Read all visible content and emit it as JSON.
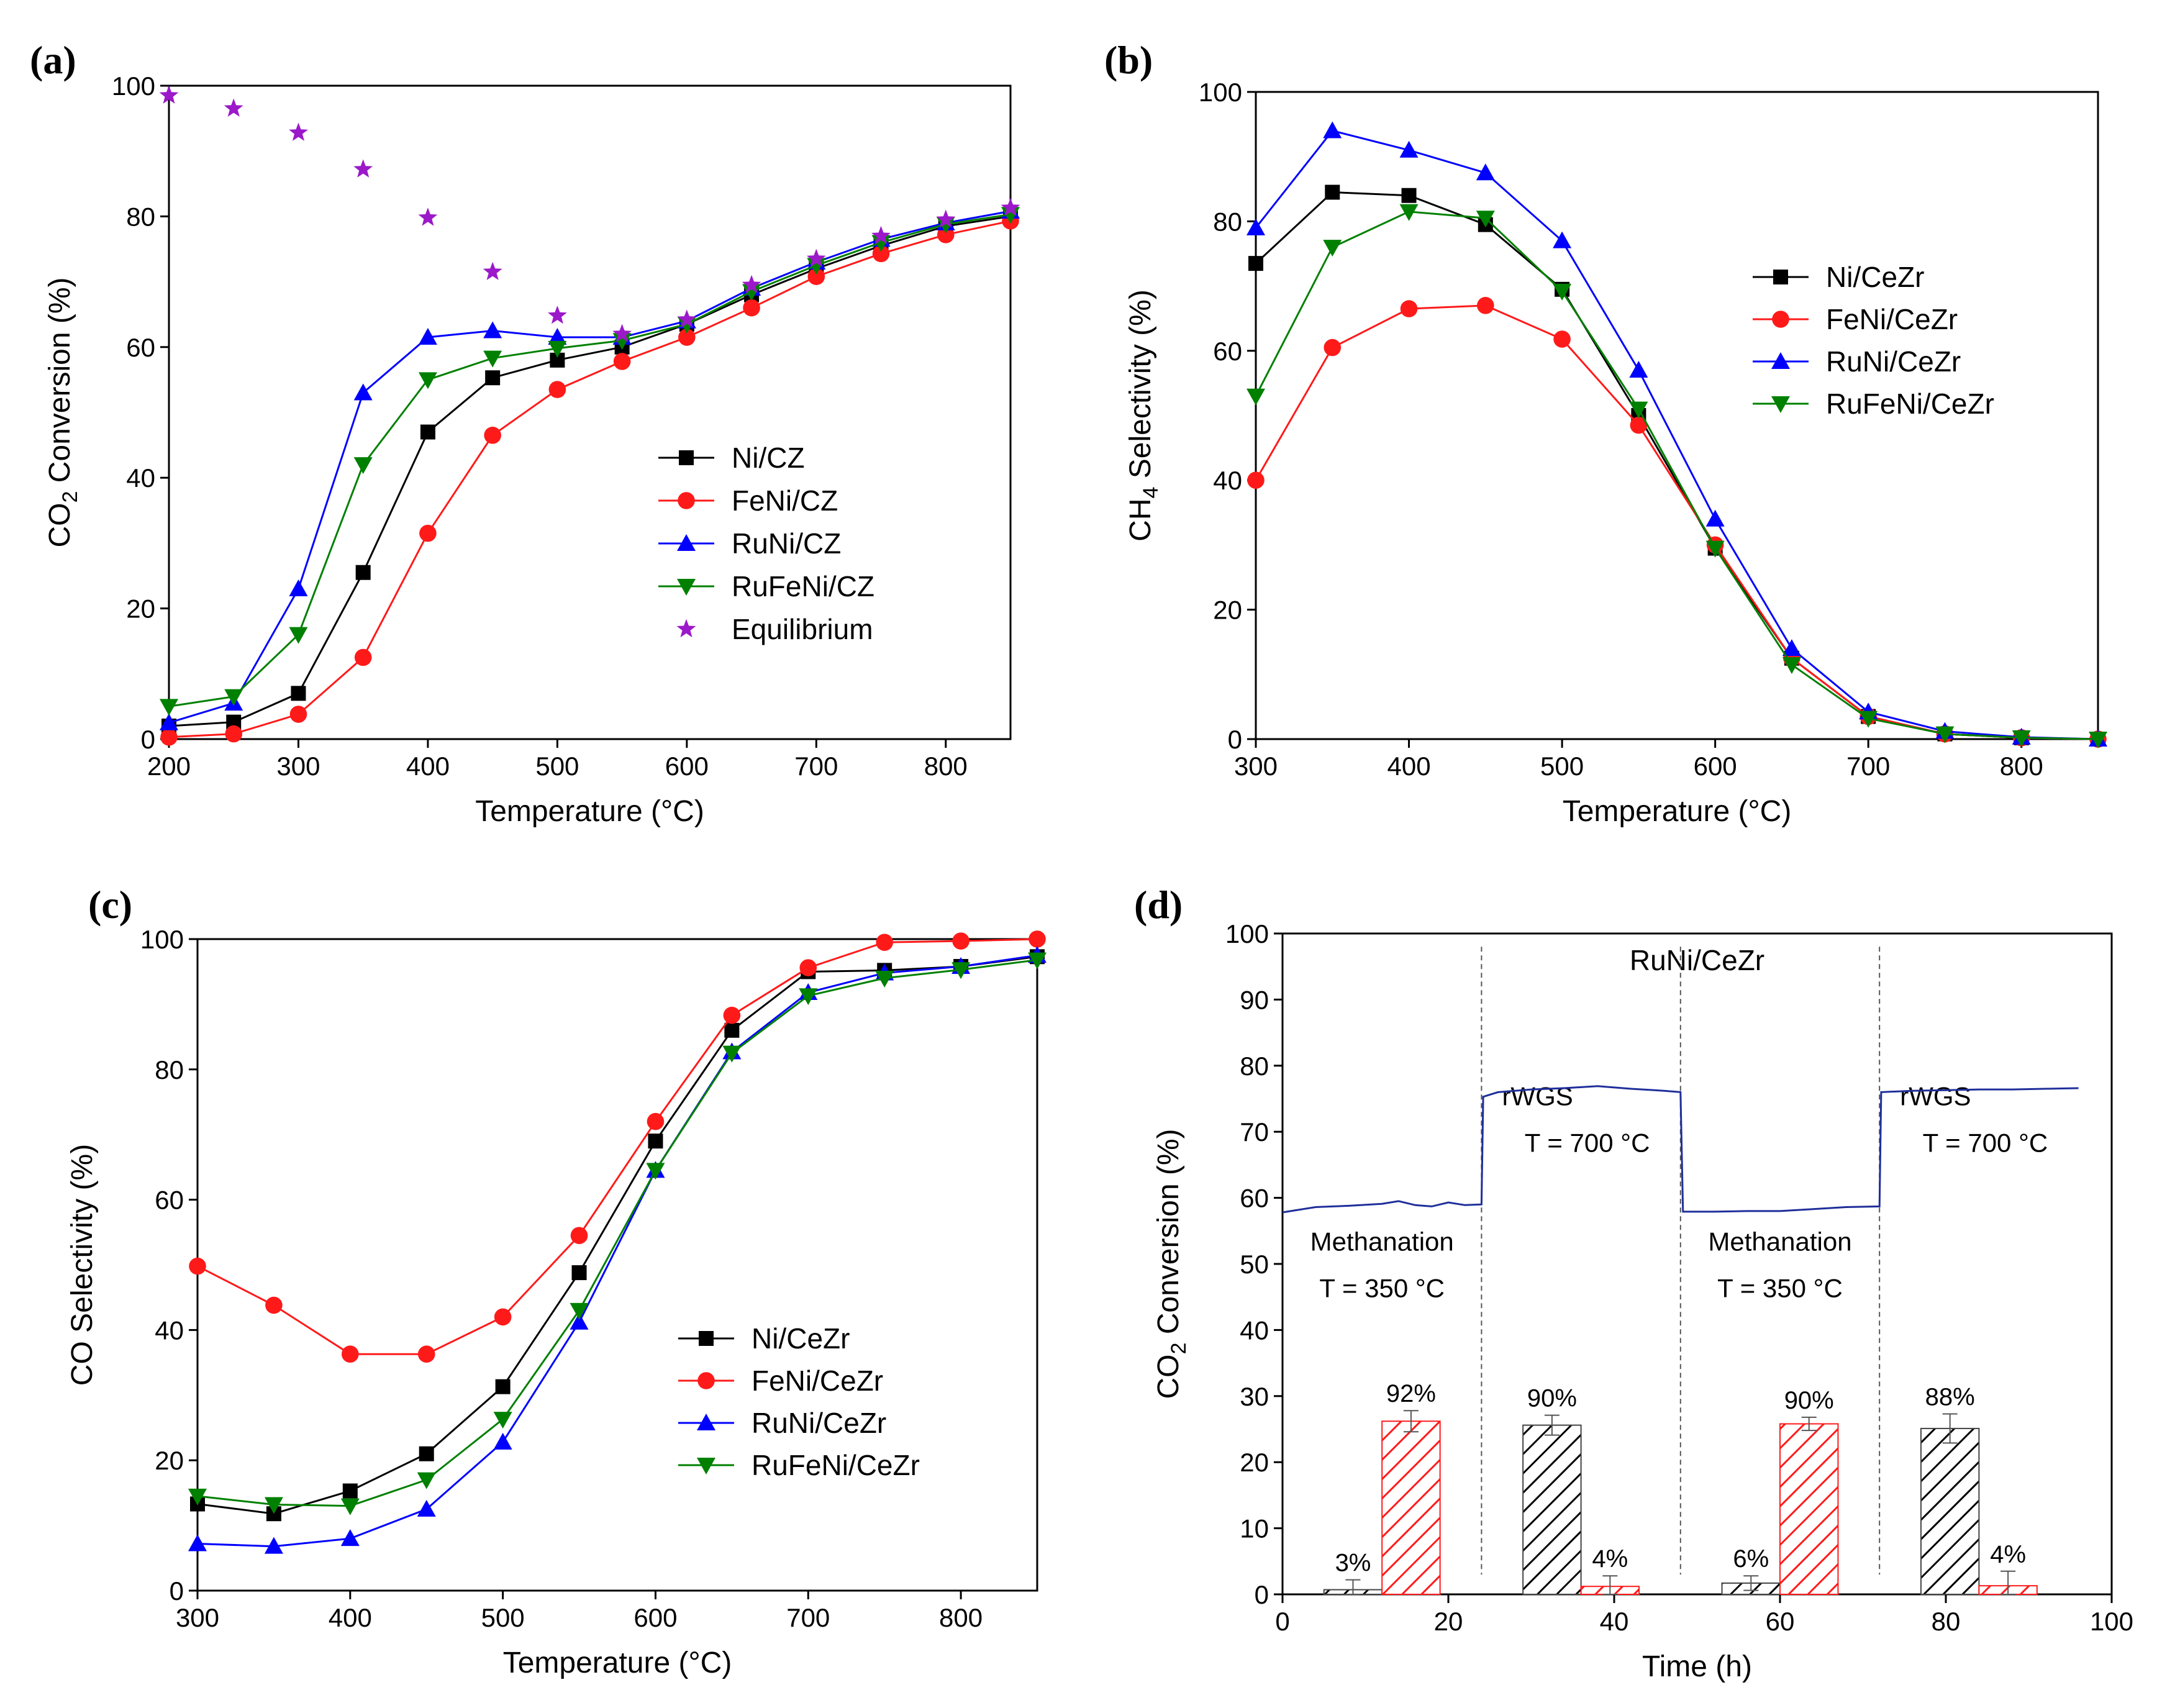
{
  "figure": {
    "colors": {
      "black": "#000000",
      "red": "#ff1a1a",
      "blue": "#0000ff",
      "green": "#008000",
      "purple": "#9b19c9",
      "orange": "#ff8c1a",
      "trace": "#1f2f9a"
    }
  },
  "chart_data": [
    {
      "panel": "(a)",
      "type": "line",
      "xlabel": "Temperature (°C)",
      "ylabel": {
        "prefix": "CO",
        "sub": "2",
        "suffix": " Conversion (%)"
      },
      "xlim": [
        200,
        850
      ],
      "ylim": [
        0,
        100
      ],
      "xticks": [
        200,
        300,
        400,
        500,
        600,
        700,
        800
      ],
      "yticks": [
        0,
        20,
        40,
        60,
        80,
        100
      ],
      "x": [
        200,
        250,
        300,
        350,
        400,
        450,
        500,
        550,
        600,
        650,
        700,
        750,
        800,
        850
      ],
      "series": [
        {
          "name": "Ni/CZ",
          "marker": "square",
          "color": "#000000",
          "values": [
            2,
            2.6,
            7,
            25.5,
            47,
            55.3,
            58,
            60,
            63.5,
            68,
            72,
            75.5,
            78.5,
            80
          ]
        },
        {
          "name": "FeNi/CZ",
          "marker": "circle",
          "color": "#ff1a1a",
          "values": [
            0.3,
            0.8,
            3.8,
            12.5,
            31.5,
            46.5,
            53.5,
            57.8,
            61.5,
            66,
            70.8,
            74.3,
            77.2,
            79.3
          ]
        },
        {
          "name": "RuNi/CZ",
          "marker": "triangle-up",
          "color": "#0000ff",
          "values": [
            2.5,
            5.5,
            23,
            53,
            61.5,
            62.5,
            61.5,
            61.5,
            64,
            69,
            73,
            76.5,
            79,
            80.8
          ]
        },
        {
          "name": "RuFeNi/CZ",
          "marker": "triangle-down",
          "color": "#008000",
          "values": [
            5,
            6.5,
            16,
            42,
            55,
            58.3,
            59.8,
            61,
            63.5,
            68.5,
            72.5,
            76,
            78.8,
            80.3
          ]
        },
        {
          "name": "Equilibrium",
          "marker": "star",
          "color": "#9b19c9",
          "line": false,
          "values": [
            98.5,
            96.5,
            92.8,
            87.2,
            79.8,
            71.5,
            64.8,
            62,
            64.2,
            69.5,
            73.5,
            77,
            79.5,
            81.3
          ]
        }
      ],
      "legend": "center-right"
    },
    {
      "panel": "(b)",
      "type": "line",
      "xlabel": "Temperature (°C)",
      "ylabel": {
        "prefix": "CH",
        "sub": "4",
        "suffix": " Selectivity (%)"
      },
      "xlim": [
        300,
        850
      ],
      "ylim": [
        0,
        100
      ],
      "xticks": [
        300,
        400,
        500,
        600,
        700,
        800
      ],
      "yticks": [
        0,
        20,
        40,
        60,
        80,
        100
      ],
      "x": [
        300,
        350,
        400,
        450,
        500,
        550,
        600,
        650,
        700,
        750,
        800,
        850
      ],
      "series": [
        {
          "name": "Ni/CeZr",
          "marker": "square",
          "color": "#000000",
          "values": [
            73.5,
            84.5,
            84,
            79.5,
            69.5,
            50,
            29.5,
            12.5,
            3.5,
            0.8,
            0.2,
            0
          ]
        },
        {
          "name": "FeNi/CeZr",
          "marker": "circle",
          "color": "#ff1a1a",
          "values": [
            40,
            60.5,
            66.5,
            67,
            61.8,
            48.5,
            30,
            12.5,
            3.5,
            0.8,
            0.2,
            0
          ]
        },
        {
          "name": "RuNi/CeZr",
          "marker": "triangle-up",
          "color": "#0000ff",
          "values": [
            79,
            94,
            91,
            87.5,
            77,
            57,
            34,
            14,
            4.2,
            1.2,
            0.3,
            0
          ]
        },
        {
          "name": "RuFeNi/CeZr",
          "marker": "triangle-down",
          "color": "#008000",
          "values": [
            53,
            76,
            81.5,
            80.5,
            69.2,
            51,
            29.5,
            11.5,
            3.2,
            0.8,
            0.2,
            0
          ]
        }
      ],
      "legend": "center-right"
    },
    {
      "panel": "(c)",
      "type": "line",
      "xlabel": "Temperature (°C)",
      "ylabel": {
        "prefix": "CO Selectivity (%)",
        "sub": "",
        "suffix": ""
      },
      "xlim": [
        300,
        850
      ],
      "ylim": [
        0,
        100
      ],
      "xticks": [
        300,
        400,
        500,
        600,
        700,
        800
      ],
      "yticks": [
        0,
        20,
        40,
        60,
        80,
        100
      ],
      "x": [
        300,
        350,
        400,
        450,
        500,
        550,
        600,
        650,
        700,
        750,
        800,
        850
      ],
      "series": [
        {
          "name": "Ni/CeZr",
          "marker": "square",
          "color": "#000000",
          "values": [
            13.3,
            11.8,
            15.3,
            21,
            31.3,
            48.8,
            69,
            86,
            95,
            95.2,
            95.8,
            97.3
          ]
        },
        {
          "name": "FeNi/CeZr",
          "marker": "circle",
          "color": "#ff1a1a",
          "values": [
            49.8,
            43.8,
            36.3,
            36.3,
            42,
            54.5,
            72,
            88.3,
            95.6,
            99.5,
            99.7,
            100
          ]
        },
        {
          "name": "RuNi/CeZr",
          "marker": "triangle-up",
          "color": "#0000ff",
          "values": [
            7.2,
            6.8,
            8,
            12.5,
            22.8,
            41.2,
            64.5,
            82.7,
            91.8,
            94.8,
            95.8,
            97.5
          ]
        },
        {
          "name": "RuFeNi/CeZr",
          "marker": "triangle-down",
          "color": "#008000",
          "values": [
            14.5,
            13.2,
            13,
            17,
            26.3,
            43,
            64.5,
            82.5,
            91.3,
            94,
            95.3,
            96.8
          ]
        }
      ],
      "legend": "center-right"
    },
    {
      "panel": "(d)",
      "type": "bar+line",
      "title": "RuNi/CeZr",
      "xlabel": "Time (h)",
      "ylabel": {
        "prefix": "CO",
        "sub": "2",
        "suffix": " Conversion (%)"
      },
      "xlim": [
        0,
        100
      ],
      "ylim": [
        0,
        100
      ],
      "xticks": [
        0,
        20,
        40,
        60,
        80,
        100
      ],
      "yticks": [
        0,
        10,
        20,
        30,
        40,
        50,
        60,
        70,
        80,
        90,
        100
      ],
      "phases": [
        {
          "name": "Methanation",
          "condition": "T = 350 °C",
          "start": 0,
          "end": 24
        },
        {
          "name": "rWGS",
          "condition": "T = 700 °C",
          "start": 24,
          "end": 48
        },
        {
          "name": "Methanation",
          "condition": "T = 350 °C",
          "start": 48,
          "end": 72
        },
        {
          "name": "rWGS",
          "condition": "T = 700 °C",
          "start": 72,
          "end": 96
        }
      ],
      "trace": {
        "name": "CO2 conversion (time on stream)",
        "color": "#1f2f9a",
        "x": [
          0,
          4,
          8,
          12,
          14,
          16,
          18,
          20,
          22,
          24,
          24.2,
          26,
          30,
          34,
          38,
          42,
          46,
          48,
          48.3,
          52,
          56,
          60,
          64,
          68,
          72,
          72.2,
          76,
          80,
          84,
          88,
          92,
          96
        ],
        "y": [
          57.8,
          58.6,
          58.8,
          59.1,
          59.5,
          58.9,
          58.7,
          59.3,
          58.9,
          59.0,
          75.3,
          76.0,
          76.4,
          76.6,
          76.9,
          76.5,
          76.2,
          76.0,
          57.9,
          57.9,
          58.0,
          58.0,
          58.3,
          58.6,
          58.7,
          76.0,
          76.2,
          76.3,
          76.4,
          76.4,
          76.5,
          76.6
        ]
      },
      "bars": [
        {
          "x": 8.5,
          "value": 0.7,
          "error": 1.5,
          "color": "#000000",
          "label": "3%"
        },
        {
          "x": 15.5,
          "value": 26.2,
          "error": 1.6,
          "color": "#ff1a1a",
          "label": "92%"
        },
        {
          "x": 32.5,
          "value": 25.6,
          "error": 1.5,
          "color": "#000000",
          "label": "90%"
        },
        {
          "x": 39.5,
          "value": 1.2,
          "error": 1.6,
          "color": "#ff1a1a",
          "label": "4%"
        },
        {
          "x": 56.5,
          "value": 1.7,
          "error": 1.1,
          "color": "#000000",
          "label": "6%"
        },
        {
          "x": 63.5,
          "value": 25.8,
          "error": 1.0,
          "color": "#ff1a1a",
          "label": "90%"
        },
        {
          "x": 80.5,
          "value": 25.1,
          "error": 2.2,
          "color": "#000000",
          "label": "88%"
        },
        {
          "x": 87.5,
          "value": 1.3,
          "error": 2.2,
          "color": "#ff1a1a",
          "label": "4%"
        }
      ]
    }
  ]
}
